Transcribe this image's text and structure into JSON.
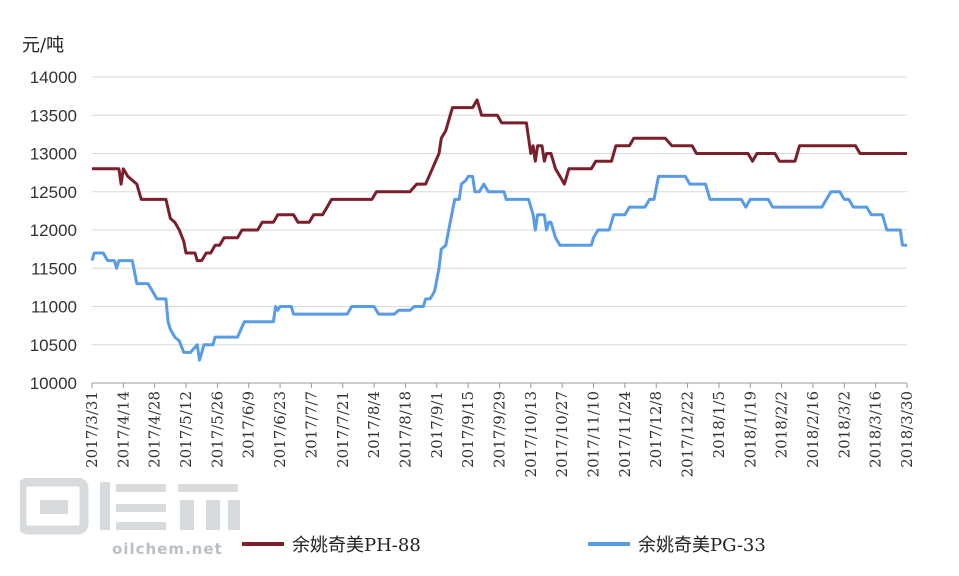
{
  "chart_data": {
    "type": "line",
    "unit_label": "元/吨",
    "ylim": [
      10000,
      14000
    ],
    "yticks": [
      10000,
      10500,
      11000,
      11500,
      12000,
      12500,
      13000,
      13500,
      14000
    ],
    "x_start": "2017-03-31",
    "x_end": "2018-03-30",
    "xticks": [
      "2017/3/31",
      "2017/4/14",
      "2017/4/28",
      "2017/5/12",
      "2017/5/26",
      "2017/6/9",
      "2017/6/23",
      "2017/7/7",
      "2017/7/21",
      "2017/8/4",
      "2017/8/18",
      "2017/9/1",
      "2017/9/15",
      "2017/9/29",
      "2017/10/13",
      "2017/10/27",
      "2017/11/10",
      "2017/11/24",
      "2017/12/8",
      "2017/12/22",
      "2018/1/5",
      "2018/1/19",
      "2018/2/2",
      "2018/2/16",
      "2018/3/2",
      "2018/3/16",
      "2018/3/30"
    ],
    "grid": true,
    "legend_position": "bottom",
    "series": [
      {
        "name": "余姚奇美PH-88",
        "color": "#7a1f2b",
        "points": [
          [
            "2017-03-31",
            12800
          ],
          [
            "2017-04-12",
            12800
          ],
          [
            "2017-04-13",
            12600
          ],
          [
            "2017-04-14",
            12800
          ],
          [
            "2017-04-16",
            12700
          ],
          [
            "2017-04-20",
            12600
          ],
          [
            "2017-04-22",
            12400
          ],
          [
            "2017-05-03",
            12400
          ],
          [
            "2017-05-05",
            12150
          ],
          [
            "2017-05-07",
            12100
          ],
          [
            "2017-05-09",
            12000
          ],
          [
            "2017-05-11",
            11850
          ],
          [
            "2017-05-12",
            11700
          ],
          [
            "2017-05-16",
            11700
          ],
          [
            "2017-05-17",
            11600
          ],
          [
            "2017-05-19",
            11600
          ],
          [
            "2017-05-21",
            11700
          ],
          [
            "2017-05-23",
            11700
          ],
          [
            "2017-05-25",
            11800
          ],
          [
            "2017-05-27",
            11800
          ],
          [
            "2017-05-29",
            11900
          ],
          [
            "2017-06-04",
            11900
          ],
          [
            "2017-06-06",
            12000
          ],
          [
            "2017-06-13",
            12000
          ],
          [
            "2017-06-15",
            12100
          ],
          [
            "2017-06-20",
            12100
          ],
          [
            "2017-06-22",
            12200
          ],
          [
            "2017-06-29",
            12200
          ],
          [
            "2017-07-01",
            12100
          ],
          [
            "2017-07-06",
            12100
          ],
          [
            "2017-07-08",
            12200
          ],
          [
            "2017-07-12",
            12200
          ],
          [
            "2017-07-14",
            12300
          ],
          [
            "2017-07-16",
            12400
          ],
          [
            "2017-08-03",
            12400
          ],
          [
            "2017-08-05",
            12500
          ],
          [
            "2017-08-20",
            12500
          ],
          [
            "2017-08-23",
            12600
          ],
          [
            "2017-08-27",
            12600
          ],
          [
            "2017-08-30",
            12800
          ],
          [
            "2017-09-02",
            13000
          ],
          [
            "2017-09-03",
            13200
          ],
          [
            "2017-09-05",
            13300
          ],
          [
            "2017-09-07",
            13500
          ],
          [
            "2017-09-08",
            13600
          ],
          [
            "2017-09-17",
            13600
          ],
          [
            "2017-09-19",
            13700
          ],
          [
            "2017-09-21",
            13500
          ],
          [
            "2017-09-28",
            13500
          ],
          [
            "2017-09-30",
            13400
          ],
          [
            "2017-10-11",
            13400
          ],
          [
            "2017-10-12",
            13200
          ],
          [
            "2017-10-13",
            13000
          ],
          [
            "2017-10-14",
            13100
          ],
          [
            "2017-10-15",
            12900
          ],
          [
            "2017-10-16",
            13100
          ],
          [
            "2017-10-18",
            13100
          ],
          [
            "2017-10-19",
            12900
          ],
          [
            "2017-10-20",
            13000
          ],
          [
            "2017-10-22",
            13000
          ],
          [
            "2017-10-24",
            12800
          ],
          [
            "2017-10-26",
            12700
          ],
          [
            "2017-10-28",
            12600
          ],
          [
            "2017-10-30",
            12800
          ],
          [
            "2017-11-09",
            12800
          ],
          [
            "2017-11-11",
            12900
          ],
          [
            "2017-11-18",
            12900
          ],
          [
            "2017-11-20",
            13100
          ],
          [
            "2017-11-26",
            13100
          ],
          [
            "2017-11-28",
            13200
          ],
          [
            "2017-12-12",
            13200
          ],
          [
            "2017-12-15",
            13100
          ],
          [
            "2017-12-24",
            13100
          ],
          [
            "2017-12-26",
            13000
          ],
          [
            "2018-01-18",
            13000
          ],
          [
            "2018-01-20",
            12900
          ],
          [
            "2018-01-22",
            13000
          ],
          [
            "2018-01-30",
            13000
          ],
          [
            "2018-02-01",
            12900
          ],
          [
            "2018-02-08",
            12900
          ],
          [
            "2018-02-10",
            13100
          ],
          [
            "2018-03-07",
            13100
          ],
          [
            "2018-03-09",
            13000
          ],
          [
            "2018-03-30",
            13000
          ]
        ]
      },
      {
        "name": "余姚奇美PG-33",
        "color": "#5a9be6",
        "points": [
          [
            "2017-03-31",
            11600
          ],
          [
            "2017-04-01",
            11700
          ],
          [
            "2017-04-05",
            11700
          ],
          [
            "2017-04-07",
            11600
          ],
          [
            "2017-04-10",
            11600
          ],
          [
            "2017-04-11",
            11500
          ],
          [
            "2017-04-12",
            11600
          ],
          [
            "2017-04-18",
            11600
          ],
          [
            "2017-04-20",
            11300
          ],
          [
            "2017-04-25",
            11300
          ],
          [
            "2017-04-27",
            11200
          ],
          [
            "2017-04-29",
            11100
          ],
          [
            "2017-05-03",
            11100
          ],
          [
            "2017-05-04",
            10800
          ],
          [
            "2017-05-05",
            10700
          ],
          [
            "2017-05-07",
            10600
          ],
          [
            "2017-05-09",
            10550
          ],
          [
            "2017-05-11",
            10400
          ],
          [
            "2017-05-14",
            10400
          ],
          [
            "2017-05-17",
            10500
          ],
          [
            "2017-05-18",
            10300
          ],
          [
            "2017-05-20",
            10500
          ],
          [
            "2017-05-24",
            10500
          ],
          [
            "2017-05-25",
            10600
          ],
          [
            "2017-06-04",
            10600
          ],
          [
            "2017-06-07",
            10800
          ],
          [
            "2017-06-20",
            10800
          ],
          [
            "2017-06-21",
            11000
          ],
          [
            "2017-06-22",
            10950
          ],
          [
            "2017-06-23",
            11000
          ],
          [
            "2017-06-28",
            11000
          ],
          [
            "2017-06-29",
            10900
          ],
          [
            "2017-07-23",
            10900
          ],
          [
            "2017-07-25",
            11000
          ],
          [
            "2017-08-04",
            11000
          ],
          [
            "2017-08-06",
            10900
          ],
          [
            "2017-08-13",
            10900
          ],
          [
            "2017-08-15",
            10950
          ],
          [
            "2017-08-20",
            10950
          ],
          [
            "2017-08-22",
            11000
          ],
          [
            "2017-08-26",
            11000
          ],
          [
            "2017-08-27",
            11100
          ],
          [
            "2017-08-29",
            11100
          ],
          [
            "2017-08-31",
            11200
          ],
          [
            "2017-09-02",
            11500
          ],
          [
            "2017-09-03",
            11750
          ],
          [
            "2017-09-05",
            11800
          ],
          [
            "2017-09-07",
            12100
          ],
          [
            "2017-09-09",
            12400
          ],
          [
            "2017-09-11",
            12400
          ],
          [
            "2017-09-12",
            12600
          ],
          [
            "2017-09-14",
            12650
          ],
          [
            "2017-09-15",
            12700
          ],
          [
            "2017-09-17",
            12700
          ],
          [
            "2017-09-18",
            12500
          ],
          [
            "2017-09-20",
            12500
          ],
          [
            "2017-09-22",
            12600
          ],
          [
            "2017-09-24",
            12500
          ],
          [
            "2017-10-01",
            12500
          ],
          [
            "2017-10-02",
            12400
          ],
          [
            "2017-10-12",
            12400
          ],
          [
            "2017-10-14",
            12200
          ],
          [
            "2017-10-15",
            12000
          ],
          [
            "2017-10-16",
            12200
          ],
          [
            "2017-10-19",
            12200
          ],
          [
            "2017-10-20",
            12000
          ],
          [
            "2017-10-21",
            12100
          ],
          [
            "2017-10-22",
            12100
          ],
          [
            "2017-10-24",
            11900
          ],
          [
            "2017-10-26",
            11800
          ],
          [
            "2017-11-09",
            11800
          ],
          [
            "2017-11-10",
            11900
          ],
          [
            "2017-11-12",
            12000
          ],
          [
            "2017-11-17",
            12000
          ],
          [
            "2017-11-19",
            12200
          ],
          [
            "2017-11-24",
            12200
          ],
          [
            "2017-11-26",
            12300
          ],
          [
            "2017-12-03",
            12300
          ],
          [
            "2017-12-05",
            12400
          ],
          [
            "2017-12-07",
            12400
          ],
          [
            "2017-12-09",
            12700
          ],
          [
            "2017-12-21",
            12700
          ],
          [
            "2017-12-23",
            12600
          ],
          [
            "2017-12-30",
            12600
          ],
          [
            "2018-01-01",
            12400
          ],
          [
            "2018-01-15",
            12400
          ],
          [
            "2018-01-17",
            12300
          ],
          [
            "2018-01-19",
            12400
          ],
          [
            "2018-01-27",
            12400
          ],
          [
            "2018-01-29",
            12300
          ],
          [
            "2018-02-20",
            12300
          ],
          [
            "2018-02-22",
            12400
          ],
          [
            "2018-02-24",
            12500
          ],
          [
            "2018-02-28",
            12500
          ],
          [
            "2018-03-02",
            12400
          ],
          [
            "2018-03-04",
            12400
          ],
          [
            "2018-03-06",
            12300
          ],
          [
            "2018-03-12",
            12300
          ],
          [
            "2018-03-14",
            12200
          ],
          [
            "2018-03-19",
            12200
          ],
          [
            "2018-03-21",
            12000
          ],
          [
            "2018-03-27",
            12000
          ],
          [
            "2018-03-28",
            11800
          ],
          [
            "2018-03-30",
            11800
          ]
        ]
      }
    ]
  },
  "watermark": {
    "text": "oilchem.net"
  }
}
